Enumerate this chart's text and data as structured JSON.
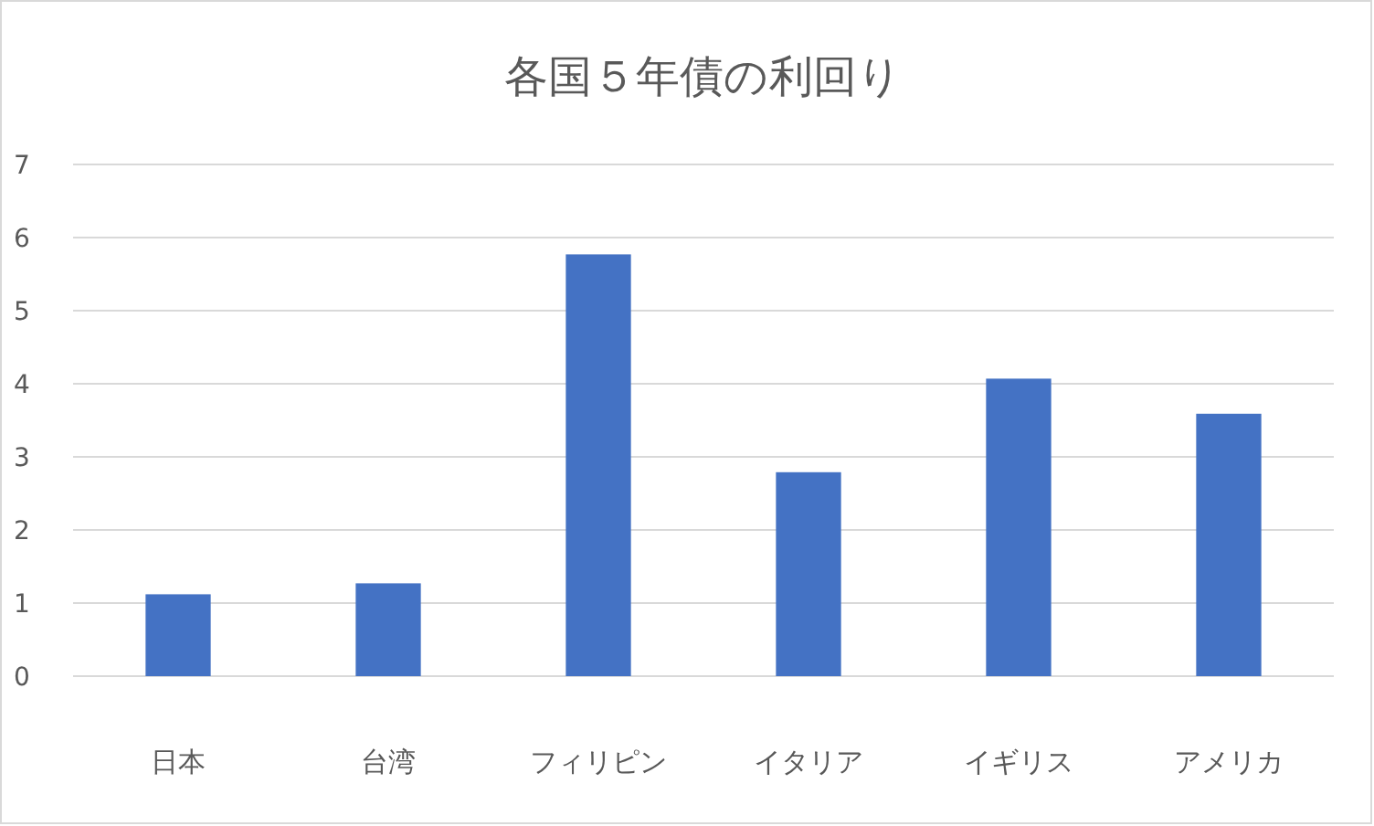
{
  "chart_data": {
    "type": "bar",
    "title": "各国５年債の利回り",
    "categories": [
      "日本",
      "台湾",
      "フィリピン",
      "イタリア",
      "イギリス",
      "アメリカ"
    ],
    "values": [
      1.12,
      1.27,
      5.77,
      2.79,
      4.07,
      3.59
    ],
    "color": "#4472c4",
    "ylim": [
      0,
      7
    ],
    "yticks": [
      0,
      1,
      2,
      3,
      4,
      5,
      6,
      7
    ],
    "grid": "y"
  }
}
